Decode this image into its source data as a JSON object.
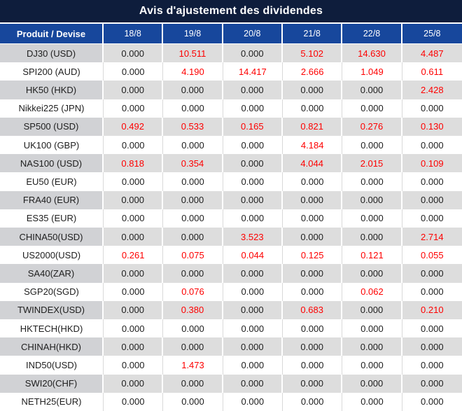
{
  "title": "Avis d'ajustement des dividendes",
  "columns": [
    "Produit / Devise",
    "18/8",
    "19/8",
    "20/8",
    "21/8",
    "22/8",
    "25/8"
  ],
  "rows": [
    {
      "product": "DJ30 (USD)",
      "values": [
        "0.000",
        "10.511",
        "0.000",
        "5.102",
        "14.630",
        "4.487"
      ]
    },
    {
      "product": "SPI200 (AUD)",
      "values": [
        "0.000",
        "4.190",
        "14.417",
        "2.666",
        "1.049",
        "0.611"
      ]
    },
    {
      "product": "HK50 (HKD)",
      "values": [
        "0.000",
        "0.000",
        "0.000",
        "0.000",
        "0.000",
        "2.428"
      ]
    },
    {
      "product": "Nikkei225 (JPN)",
      "values": [
        "0.000",
        "0.000",
        "0.000",
        "0.000",
        "0.000",
        "0.000"
      ]
    },
    {
      "product": "SP500 (USD)",
      "values": [
        "0.492",
        "0.533",
        "0.165",
        "0.821",
        "0.276",
        "0.130"
      ]
    },
    {
      "product": "UK100 (GBP)",
      "values": [
        "0.000",
        "0.000",
        "0.000",
        "4.184",
        "0.000",
        "0.000"
      ]
    },
    {
      "product": "NAS100 (USD)",
      "values": [
        "0.818",
        "0.354",
        "0.000",
        "4.044",
        "2.015",
        "0.109"
      ]
    },
    {
      "product": "EU50 (EUR)",
      "values": [
        "0.000",
        "0.000",
        "0.000",
        "0.000",
        "0.000",
        "0.000"
      ]
    },
    {
      "product": "FRA40 (EUR)",
      "values": [
        "0.000",
        "0.000",
        "0.000",
        "0.000",
        "0.000",
        "0.000"
      ]
    },
    {
      "product": "ES35 (EUR)",
      "values": [
        "0.000",
        "0.000",
        "0.000",
        "0.000",
        "0.000",
        "0.000"
      ]
    },
    {
      "product": "CHINA50(USD)",
      "values": [
        "0.000",
        "0.000",
        "3.523",
        "0.000",
        "0.000",
        "2.714"
      ]
    },
    {
      "product": "US2000(USD)",
      "values": [
        "0.261",
        "0.075",
        "0.044",
        "0.125",
        "0.121",
        "0.055"
      ]
    },
    {
      "product": "SA40(ZAR)",
      "values": [
        "0.000",
        "0.000",
        "0.000",
        "0.000",
        "0.000",
        "0.000"
      ]
    },
    {
      "product": "SGP20(SGD)",
      "values": [
        "0.000",
        "0.076",
        "0.000",
        "0.000",
        "0.062",
        "0.000"
      ]
    },
    {
      "product": "TWINDEX(USD)",
      "values": [
        "0.000",
        "0.380",
        "0.000",
        "0.683",
        "0.000",
        "0.210"
      ]
    },
    {
      "product": "HKTECH(HKD)",
      "values": [
        "0.000",
        "0.000",
        "0.000",
        "0.000",
        "0.000",
        "0.000"
      ]
    },
    {
      "product": "CHINAH(HKD)",
      "values": [
        "0.000",
        "0.000",
        "0.000",
        "0.000",
        "0.000",
        "0.000"
      ]
    },
    {
      "product": "IND50(USD)",
      "values": [
        "0.000",
        "1.473",
        "0.000",
        "0.000",
        "0.000",
        "0.000"
      ]
    },
    {
      "product": "SWI20(CHF)",
      "values": [
        "0.000",
        "0.000",
        "0.000",
        "0.000",
        "0.000",
        "0.000"
      ]
    },
    {
      "product": "NETH25(EUR)",
      "values": [
        "0.000",
        "0.000",
        "0.000",
        "0.000",
        "0.000",
        "0.000"
      ]
    }
  ],
  "colors": {
    "title_bg": "#0e1d3c",
    "header_bg": "#17479c",
    "header_text": "#ffffff",
    "zero_text": "#202020",
    "nonzero_text": "#fe0000",
    "row_gray": "#dddddd",
    "row_gray_product": "#d1d2d5",
    "row_white": "#ffffff"
  }
}
